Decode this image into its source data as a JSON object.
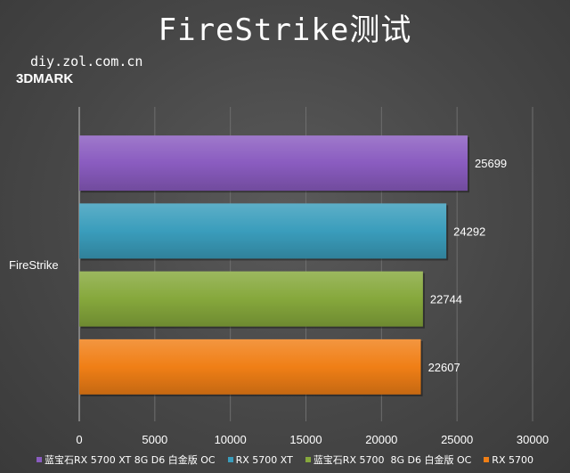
{
  "title": "FireStrike测试",
  "watermark": "diy.zol.com.cn",
  "subtitle": "3DMARK",
  "chart_data": {
    "type": "bar",
    "orientation": "horizontal",
    "categories": [
      "FireStrike"
    ],
    "xlim": [
      0,
      30000
    ],
    "xticks": [
      0,
      5000,
      10000,
      15000,
      20000,
      25000,
      30000
    ],
    "grid": true,
    "legend_position": "bottom",
    "series": [
      {
        "name": "蓝宝石RX 5700 XT 8G D6 白金版 OC",
        "values": [
          25699
        ],
        "color": "#8a5cc0"
      },
      {
        "name": "RX 5700 XT",
        "values": [
          24292
        ],
        "color": "#3a9dbc"
      },
      {
        "name": "蓝宝石RX 5700  8G D6 白金版 OC",
        "values": [
          22744
        ],
        "color": "#86a83c"
      },
      {
        "name": "RX 5700",
        "values": [
          22607
        ],
        "color": "#f07f16"
      }
    ]
  }
}
